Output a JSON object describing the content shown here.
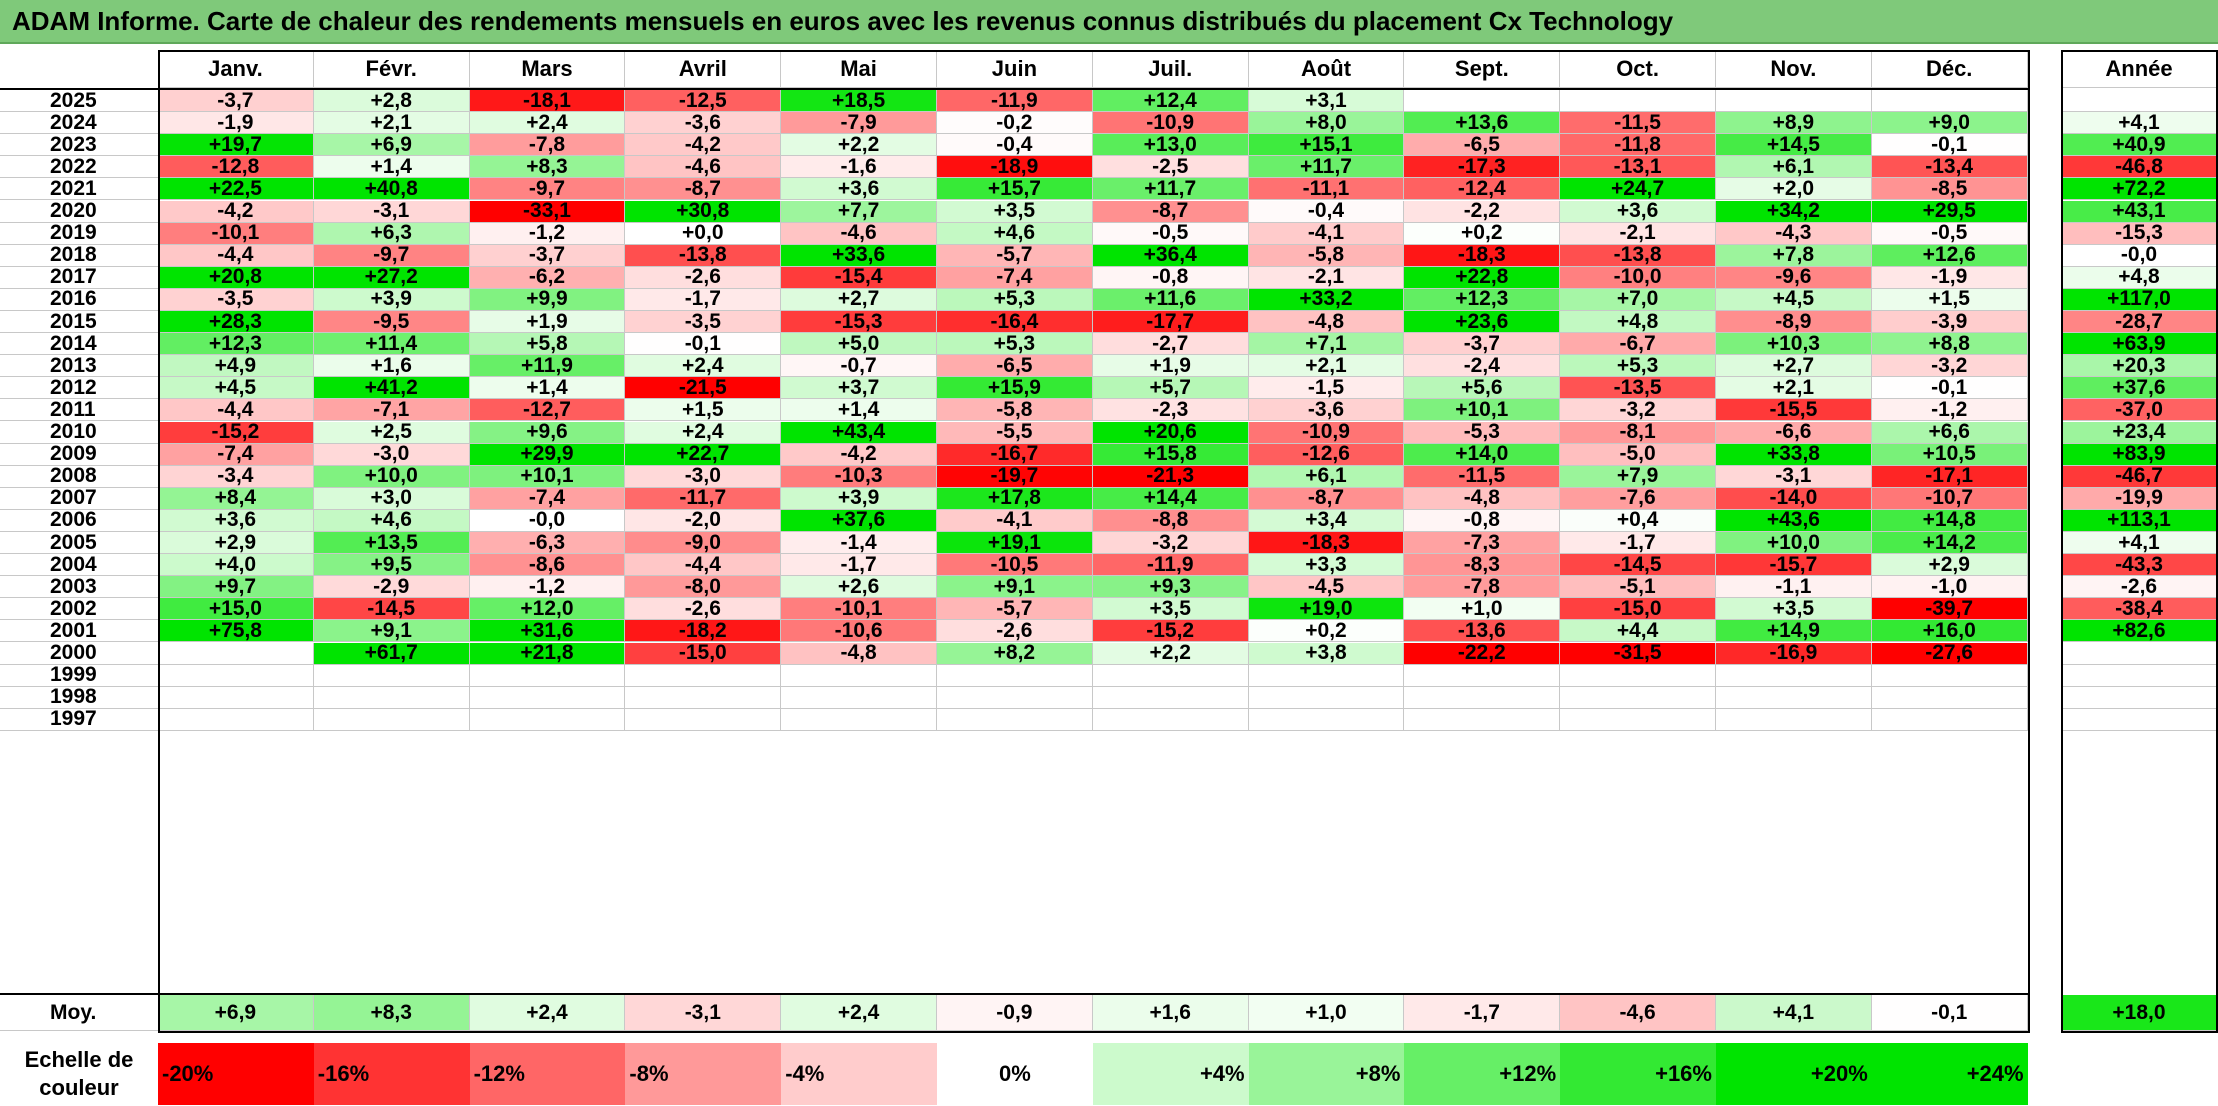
{
  "title": "ADAM Informe. Carte de chaleur des rendements mensuels en euros avec les revenus connus distribués du placement Cx Technology",
  "chart_data": {
    "type": "heatmap",
    "columns": [
      "Janv.",
      "Févr.",
      "Mars",
      "Avril",
      "Mai",
      "Juin",
      "Juil.",
      "Août",
      "Sept.",
      "Oct.",
      "Nov.",
      "Déc."
    ],
    "year_column_label": "Année",
    "rows": [
      {
        "label": "2025",
        "values": [
          "-3,7",
          "+2,8",
          "-18,1",
          "-12,5",
          "+18,5",
          "-11,9",
          "+12,4",
          "+3,1",
          "",
          "",
          "",
          ""
        ],
        "year": ""
      },
      {
        "label": "2024",
        "values": [
          "-1,9",
          "+2,1",
          "+2,4",
          "-3,6",
          "-7,9",
          "-0,2",
          "-10,9",
          "+8,0",
          "+13,6",
          "-11,5",
          "+8,9",
          "+9,0"
        ],
        "year": "+4,1"
      },
      {
        "label": "2023",
        "values": [
          "+19,7",
          "+6,9",
          "-7,8",
          "-4,2",
          "+2,2",
          "-0,4",
          "+13,0",
          "+15,1",
          "-6,5",
          "-11,8",
          "+14,5",
          "-0,1"
        ],
        "year": "+40,9"
      },
      {
        "label": "2022",
        "values": [
          "-12,8",
          "+1,4",
          "+8,3",
          "-4,6",
          "-1,6",
          "-18,9",
          "-2,5",
          "+11,7",
          "-17,3",
          "-13,1",
          "+6,1",
          "-13,4"
        ],
        "year": "-46,8"
      },
      {
        "label": "2021",
        "values": [
          "+22,5",
          "+40,8",
          "-9,7",
          "-8,7",
          "+3,6",
          "+15,7",
          "+11,7",
          "-11,1",
          "-12,4",
          "+24,7",
          "+2,0",
          "-8,5"
        ],
        "year": "+72,2"
      },
      {
        "label": "2020",
        "values": [
          "-4,2",
          "-3,1",
          "-33,1",
          "+30,8",
          "+7,7",
          "+3,5",
          "-8,7",
          "-0,4",
          "-2,2",
          "+3,6",
          "+34,2",
          "+29,5"
        ],
        "year": "+43,1"
      },
      {
        "label": "2019",
        "values": [
          "-10,1",
          "+6,3",
          "-1,2",
          "+0,0",
          "-4,6",
          "+4,6",
          "-0,5",
          "-4,1",
          "+0,2",
          "-2,1",
          "-4,3",
          "-0,5"
        ],
        "year": "-15,3"
      },
      {
        "label": "2018",
        "values": [
          "-4,4",
          "-9,7",
          "-3,7",
          "-13,8",
          "+33,6",
          "-5,7",
          "+36,4",
          "-5,8",
          "-18,3",
          "-13,8",
          "+7,8",
          "+12,6"
        ],
        "year": "-0,0"
      },
      {
        "label": "2017",
        "values": [
          "+20,8",
          "+27,2",
          "-6,2",
          "-2,6",
          "-15,4",
          "-7,4",
          "-0,8",
          "-2,1",
          "+22,8",
          "-10,0",
          "-9,6",
          "-1,9"
        ],
        "year": "+4,8"
      },
      {
        "label": "2016",
        "values": [
          "-3,5",
          "+3,9",
          "+9,9",
          "-1,7",
          "+2,7",
          "+5,3",
          "+11,6",
          "+33,2",
          "+12,3",
          "+7,0",
          "+4,5",
          "+1,5"
        ],
        "year": "+117,0"
      },
      {
        "label": "2015",
        "values": [
          "+28,3",
          "-9,5",
          "+1,9",
          "-3,5",
          "-15,3",
          "-16,4",
          "-17,7",
          "-4,8",
          "+23,6",
          "+4,8",
          "-8,9",
          "-3,9"
        ],
        "year": "-28,7"
      },
      {
        "label": "2014",
        "values": [
          "+12,3",
          "+11,4",
          "+5,8",
          "-0,1",
          "+5,0",
          "+5,3",
          "-2,7",
          "+7,1",
          "-3,7",
          "-6,7",
          "+10,3",
          "+8,8"
        ],
        "year": "+63,9"
      },
      {
        "label": "2013",
        "values": [
          "+4,9",
          "+1,6",
          "+11,9",
          "+2,4",
          "-0,7",
          "-6,5",
          "+1,9",
          "+2,1",
          "-2,4",
          "+5,3",
          "+2,7",
          "-3,2"
        ],
        "year": "+20,3"
      },
      {
        "label": "2012",
        "values": [
          "+4,5",
          "+41,2",
          "+1,4",
          "-21,5",
          "+3,7",
          "+15,9",
          "+5,7",
          "-1,5",
          "+5,6",
          "-13,5",
          "+2,1",
          "-0,1"
        ],
        "year": "+37,6"
      },
      {
        "label": "2011",
        "values": [
          "-4,4",
          "-7,1",
          "-12,7",
          "+1,5",
          "+1,4",
          "-5,8",
          "-2,3",
          "-3,6",
          "+10,1",
          "-3,2",
          "-15,5",
          "-1,2"
        ],
        "year": "-37,0"
      },
      {
        "label": "2010",
        "values": [
          "-15,2",
          "+2,5",
          "+9,6",
          "+2,4",
          "+43,4",
          "-5,5",
          "+20,6",
          "-10,9",
          "-5,3",
          "-8,1",
          "-6,6",
          "+6,6"
        ],
        "year": "+23,4"
      },
      {
        "label": "2009",
        "values": [
          "-7,4",
          "-3,0",
          "+29,9",
          "+22,7",
          "-4,2",
          "-16,7",
          "+15,8",
          "-12,6",
          "+14,0",
          "-5,0",
          "+33,8",
          "+10,5"
        ],
        "year": "+83,9"
      },
      {
        "label": "2008",
        "values": [
          "-3,4",
          "+10,0",
          "+10,1",
          "-3,0",
          "-10,3",
          "-19,7",
          "-21,3",
          "+6,1",
          "-11,5",
          "+7,9",
          "-3,1",
          "-17,1"
        ],
        "year": "-46,7"
      },
      {
        "label": "2007",
        "values": [
          "+8,4",
          "+3,0",
          "-7,4",
          "-11,7",
          "+3,9",
          "+17,8",
          "+14,4",
          "-8,7",
          "-4,8",
          "-7,6",
          "-14,0",
          "-10,7"
        ],
        "year": "-19,9"
      },
      {
        "label": "2006",
        "values": [
          "+3,6",
          "+4,6",
          "-0,0",
          "-2,0",
          "+37,6",
          "-4,1",
          "-8,8",
          "+3,4",
          "-0,8",
          "+0,4",
          "+43,6",
          "+14,8"
        ],
        "year": "+113,1"
      },
      {
        "label": "2005",
        "values": [
          "+2,9",
          "+13,5",
          "-6,3",
          "-9,0",
          "-1,4",
          "+19,1",
          "-3,2",
          "-18,3",
          "-7,3",
          "-1,7",
          "+10,0",
          "+14,2"
        ],
        "year": "+4,1"
      },
      {
        "label": "2004",
        "values": [
          "+4,0",
          "+9,5",
          "-8,6",
          "-4,4",
          "-1,7",
          "-10,5",
          "-11,9",
          "+3,3",
          "-8,3",
          "-14,5",
          "-15,7",
          "+2,9"
        ],
        "year": "-43,3"
      },
      {
        "label": "2003",
        "values": [
          "+9,7",
          "-2,9",
          "-1,2",
          "-8,0",
          "+2,6",
          "+9,1",
          "+9,3",
          "-4,5",
          "-7,8",
          "-5,1",
          "-1,1",
          "-1,0"
        ],
        "year": "-2,6"
      },
      {
        "label": "2002",
        "values": [
          "+15,0",
          "-14,5",
          "+12,0",
          "-2,6",
          "-10,1",
          "-5,7",
          "+3,5",
          "+19,0",
          "+1,0",
          "-15,0",
          "+3,5",
          "-39,7"
        ],
        "year": "-38,4"
      },
      {
        "label": "2001",
        "values": [
          "+75,8",
          "+9,1",
          "+31,6",
          "-18,2",
          "-10,6",
          "-2,6",
          "-15,2",
          "+0,2",
          "-13,6",
          "+4,4",
          "+14,9",
          "+16,0"
        ],
        "year": "+82,6"
      },
      {
        "label": "2000",
        "values": [
          "",
          "+61,7",
          "+21,8",
          "-15,0",
          "-4,8",
          "+8,2",
          "+2,2",
          "+3,8",
          "-22,2",
          "-31,5",
          "-16,9",
          "-27,6"
        ],
        "year": ""
      },
      {
        "label": "1999",
        "values": [
          "",
          "",
          "",
          "",
          "",
          "",
          "",
          "",
          "",
          "",
          "",
          ""
        ],
        "year": ""
      },
      {
        "label": "1998",
        "values": [
          "",
          "",
          "",
          "",
          "",
          "",
          "",
          "",
          "",
          "",
          "",
          ""
        ],
        "year": ""
      },
      {
        "label": "1997",
        "values": [
          "",
          "",
          "",
          "",
          "",
          "",
          "",
          "",
          "",
          "",
          "",
          ""
        ],
        "year": ""
      }
    ],
    "average": {
      "label": "Moy.",
      "values": [
        "+6,9",
        "+8,3",
        "+2,4",
        "-3,1",
        "+2,4",
        "-0,9",
        "+1,6",
        "+1,0",
        "-1,7",
        "-4,6",
        "+4,1",
        "-0,1"
      ],
      "year": "+18,0"
    },
    "color_scale": {
      "title": "Echelle de\ncouleur",
      "steps": [
        {
          "label": "-20%",
          "value": -20
        },
        {
          "label": "-16%",
          "value": -16
        },
        {
          "label": "-12%",
          "value": -12
        },
        {
          "label": "-8%",
          "value": -8
        },
        {
          "label": "-4%",
          "value": -4
        },
        {
          "label": "0%",
          "value": 0
        },
        {
          "label": "+4%",
          "value": 4
        },
        {
          "label": "+8%",
          "value": 8
        },
        {
          "label": "+12%",
          "value": 12
        },
        {
          "label": "+16%",
          "value": 16
        },
        {
          "label": "+20%",
          "value": 20
        },
        {
          "label": "+24%",
          "value": 24
        }
      ]
    },
    "colors": {
      "negative": "#ff0000",
      "neutral": "#ffffff",
      "positive": "#00e400",
      "title_bar": "#7fc97a"
    }
  }
}
